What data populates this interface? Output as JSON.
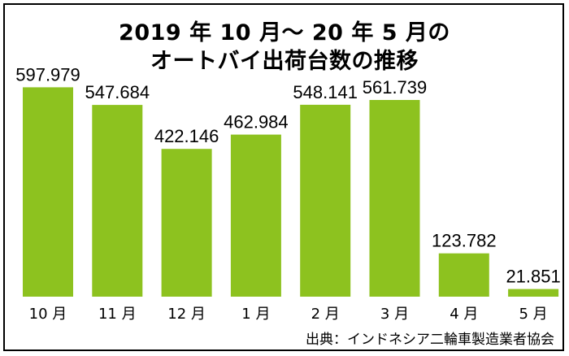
{
  "chart_data": {
    "type": "bar",
    "title_lines": [
      "2019 年 10 月〜 20 年 5 月の",
      "オートバイ出荷台数の推移"
    ],
    "categories": [
      "10 月",
      "11 月",
      "12 月",
      "1 月",
      "2 月",
      "3 月",
      "4 月",
      "5 月"
    ],
    "values": [
      597979,
      547684,
      422146,
      462984,
      548141,
      561739,
      123782,
      21851
    ],
    "value_labels": [
      "597.979",
      "547.684",
      "422.146",
      "462.984",
      "548.141",
      "561.739",
      "123.782",
      "21.851"
    ],
    "xlabel": "",
    "ylabel": "",
    "ylim": [
      0,
      650000
    ],
    "grid": false,
    "legend": "none",
    "bar_color": "#8dc21f",
    "source": "出典：インドネシア二輪車製造業者協会"
  }
}
